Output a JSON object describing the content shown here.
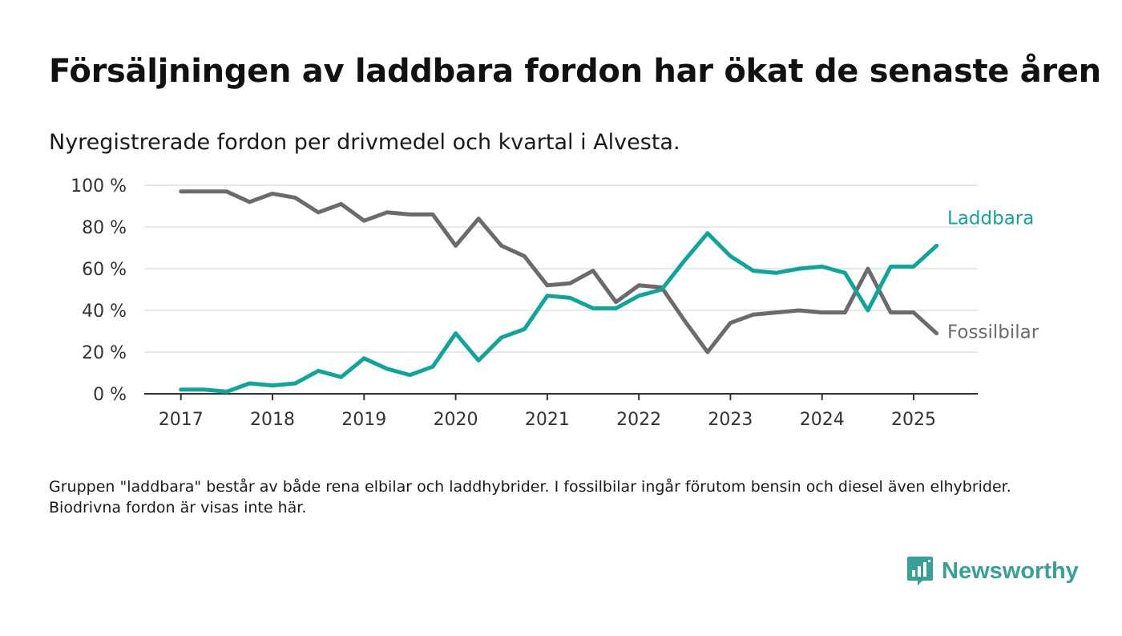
{
  "title": "Försäljningen av laddbara fordon har ökat de senaste åren",
  "subtitle": "Nyregistrerade fordon per drivmedel och kvartal i Alvesta.",
  "footnote": "Gruppen \"laddbara\" består av både rena elbilar och laddhybrider. I fossilbilar ingår förutom bensin och diesel även elhybrider. Biodrivna fordon är visas inte här.",
  "brand": {
    "name": "Newsworthy",
    "icon": "newsworthy-logo-icon",
    "color": "#3a9f96"
  },
  "chart_data": {
    "type": "line",
    "ylim": [
      0,
      100
    ],
    "y_ticks": [
      0,
      20,
      40,
      60,
      80,
      100
    ],
    "y_tick_labels": [
      "0 %",
      "20 %",
      "40 %",
      "60 %",
      "80 %",
      "100 %"
    ],
    "x_range": [
      2016.6,
      2025.7
    ],
    "x_ticks": [
      2017,
      2018,
      2019,
      2020,
      2021,
      2022,
      2023,
      2024,
      2025
    ],
    "x_tick_labels": [
      "2017",
      "2018",
      "2019",
      "2020",
      "2021",
      "2022",
      "2023",
      "2024",
      "2025"
    ],
    "grid": true,
    "x": [
      2017,
      2017.25,
      2017.5,
      2017.75,
      2018,
      2018.25,
      2018.5,
      2018.75,
      2019,
      2019.25,
      2019.5,
      2019.75,
      2020,
      2020.25,
      2020.5,
      2020.75,
      2021,
      2021.25,
      2021.5,
      2021.75,
      2022,
      2022.25,
      2022.5,
      2022.75,
      2023,
      2023.25,
      2023.5,
      2023.75,
      2024,
      2024.25,
      2024.5,
      2024.75,
      2025,
      2025.25
    ],
    "series": [
      {
        "name": "Laddbara",
        "color": "#14a39a",
        "values": [
          2,
          2,
          1,
          5,
          4,
          5,
          11,
          8,
          17,
          12,
          9,
          13,
          29,
          16,
          27,
          31,
          47,
          46,
          41,
          41,
          47,
          50,
          64,
          77,
          66,
          59,
          58,
          60,
          61,
          58,
          40,
          61,
          61,
          71
        ]
      },
      {
        "name": "Fossilbilar",
        "color": "#6b6b6e",
        "values": [
          97,
          97,
          97,
          92,
          96,
          94,
          87,
          91,
          83,
          87,
          86,
          86,
          71,
          84,
          71,
          66,
          52,
          53,
          59,
          44,
          52,
          51,
          35,
          20,
          34,
          38,
          39,
          40,
          39,
          39,
          60,
          39,
          39,
          29
        ]
      }
    ]
  }
}
